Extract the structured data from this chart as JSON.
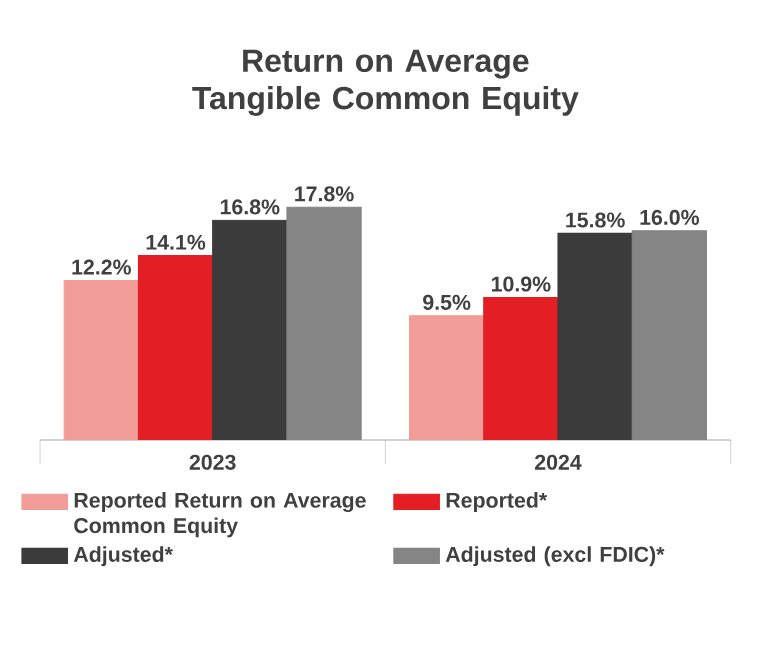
{
  "chart_data": {
    "type": "bar",
    "title": "Return on Average Tangible Common Equity",
    "categories": [
      "2023",
      "2024"
    ],
    "legend": "bottom",
    "series": [
      {
        "name": "Reported Return on Average Common Equity",
        "color": "#f29c98",
        "values": [
          12.2,
          9.5
        ],
        "value_labels": [
          "12.2%",
          "9.5%"
        ]
      },
      {
        "name": "Reported*",
        "color": "#e31e24",
        "values": [
          14.1,
          10.9
        ],
        "value_labels": [
          "14.1%",
          "10.9%"
        ]
      },
      {
        "name": "Adjusted*",
        "color": "#3b3b3b",
        "values": [
          16.8,
          15.8
        ],
        "value_labels": [
          "16.8%",
          "15.8%"
        ]
      },
      {
        "name": "Adjusted (excl FDIC)*",
        "color": "#858585",
        "values": [
          17.8,
          16.0
        ],
        "value_labels": [
          "17.8%",
          "16.0%"
        ]
      }
    ]
  }
}
